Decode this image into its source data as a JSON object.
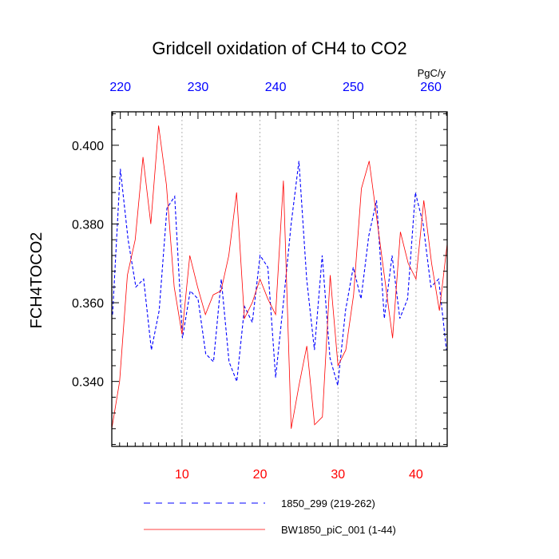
{
  "chart_data": {
    "type": "line",
    "title": "Gridcell oxidation of CH4 to CO2",
    "ylabel": "FCH4TOCO2",
    "units_label": "PgC/y",
    "xlim": [
      1,
      44
    ],
    "ylim": [
      0.3235,
      0.4085
    ],
    "top_xlim": [
      218.9,
      262.1
    ],
    "y_ticks": [
      0.34,
      0.36,
      0.38,
      0.4
    ],
    "y_tick_labels": [
      "0.340",
      "0.360",
      "0.380",
      "0.400"
    ],
    "bottom_ticks": [
      10,
      20,
      30,
      40
    ],
    "bottom_tick_labels": [
      "10",
      "20",
      "30",
      "40"
    ],
    "top_ticks": [
      220,
      230,
      240,
      250,
      260
    ],
    "top_tick_labels": [
      "220",
      "230",
      "240",
      "250",
      "260"
    ],
    "grid_x": [
      10,
      20,
      30,
      40
    ],
    "colors": {
      "bottom_axis": "#ff0000",
      "top_axis": "#0000ff"
    },
    "series": [
      {
        "name": "1850_299 (219-262)",
        "color": "#0000ff",
        "style": "dashed",
        "axis": "top",
        "x": [
          219,
          220,
          221,
          222,
          223,
          224,
          225,
          226,
          227,
          228,
          229,
          230,
          231,
          232,
          233,
          234,
          235,
          236,
          237,
          238,
          239,
          240,
          241,
          242,
          243,
          244,
          245,
          246,
          247,
          248,
          249,
          250,
          251,
          252,
          253,
          254,
          255,
          256,
          257,
          258,
          259,
          260,
          261,
          262
        ],
        "values": [
          0.357,
          0.394,
          0.376,
          0.364,
          0.366,
          0.348,
          0.358,
          0.384,
          0.387,
          0.351,
          0.363,
          0.361,
          0.347,
          0.345,
          0.366,
          0.345,
          0.34,
          0.359,
          0.355,
          0.372,
          0.369,
          0.341,
          0.36,
          0.38,
          0.396,
          0.366,
          0.348,
          0.372,
          0.346,
          0.339,
          0.358,
          0.369,
          0.361,
          0.377,
          0.386,
          0.356,
          0.372,
          0.356,
          0.361,
          0.388,
          0.38,
          0.364,
          0.366,
          0.348
        ]
      },
      {
        "name": "BW1850_piC_001 (1-44)",
        "color": "#ff0000",
        "style": "solid",
        "axis": "bottom",
        "x": [
          1,
          2,
          3,
          4,
          5,
          6,
          7,
          8,
          9,
          10,
          11,
          12,
          13,
          14,
          15,
          16,
          17,
          18,
          19,
          20,
          21,
          22,
          23,
          24,
          25,
          26,
          27,
          28,
          29,
          30,
          31,
          32,
          33,
          34,
          35,
          36,
          37,
          38,
          39,
          40,
          41,
          42,
          43,
          44
        ],
        "values": [
          0.328,
          0.34,
          0.367,
          0.376,
          0.397,
          0.38,
          0.405,
          0.39,
          0.364,
          0.352,
          0.372,
          0.364,
          0.357,
          0.362,
          0.363,
          0.372,
          0.388,
          0.356,
          0.36,
          0.366,
          0.361,
          0.357,
          0.391,
          0.328,
          0.339,
          0.349,
          0.329,
          0.331,
          0.367,
          0.344,
          0.348,
          0.362,
          0.389,
          0.396,
          0.381,
          0.366,
          0.351,
          0.378,
          0.37,
          0.366,
          0.386,
          0.37,
          0.358,
          0.375
        ]
      }
    ],
    "legend": {
      "position": "bottom",
      "entries": [
        "1850_299 (219-262)",
        "BW1850_piC_001 (1-44)"
      ]
    }
  }
}
